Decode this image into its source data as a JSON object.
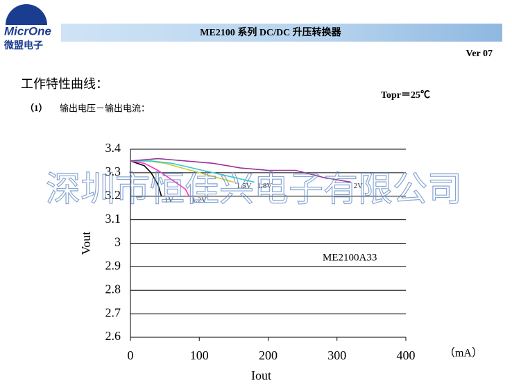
{
  "logo": {
    "brand": "MicrOne",
    "name": "微盟电子"
  },
  "header": {
    "title": "ME2100 系列 DC/DC 升压转换器",
    "version": "Ver 07"
  },
  "section": {
    "title": "工作特性曲线：",
    "condition": "Topr＝25℃",
    "item_number": "（1）",
    "item_title": "输出电压－输出电流："
  },
  "watermark": "深圳市恒佳兴电子有限公司",
  "chart_data": {
    "type": "line",
    "x_label": "Iout",
    "y_label": "Vout",
    "x_unit": "（mA）",
    "annotation": "ME2100A33",
    "xlim": [
      0,
      400
    ],
    "xticks": [
      0,
      100,
      200,
      300,
      400
    ],
    "ylim": [
      2.6,
      3.4
    ],
    "yticks": [
      2.6,
      2.7,
      2.8,
      2.9,
      3,
      3.1,
      3.2,
      3.3,
      3.4
    ],
    "grid": true,
    "series": [
      {
        "name": "1V",
        "color": "#000000",
        "x": [
          0,
          10,
          20,
          30,
          40,
          45
        ],
        "values": [
          3.35,
          3.34,
          3.33,
          3.3,
          3.25,
          3.2
        ]
      },
      {
        "name": "1.2V",
        "color": "#ff33cc",
        "x": [
          0,
          20,
          40,
          60,
          80,
          85
        ],
        "values": [
          3.35,
          3.34,
          3.31,
          3.27,
          3.23,
          3.2
        ]
      },
      {
        "name": "1.5V",
        "color": "#cccc33",
        "x": [
          0,
          25,
          50,
          75,
          100,
          125,
          150
        ],
        "values": [
          3.35,
          3.35,
          3.34,
          3.32,
          3.3,
          3.28,
          3.26
        ]
      },
      {
        "name": "1.8V",
        "color": "#33cccc",
        "x": [
          0,
          30,
          60,
          90,
          120,
          150,
          180
        ],
        "values": [
          3.35,
          3.35,
          3.34,
          3.32,
          3.3,
          3.28,
          3.26
        ]
      },
      {
        "name": "2V",
        "color": "#993399",
        "x": [
          0,
          40,
          80,
          120,
          160,
          200,
          240,
          280,
          320
        ],
        "values": [
          3.35,
          3.36,
          3.35,
          3.34,
          3.32,
          3.31,
          3.31,
          3.28,
          3.26
        ]
      }
    ]
  }
}
